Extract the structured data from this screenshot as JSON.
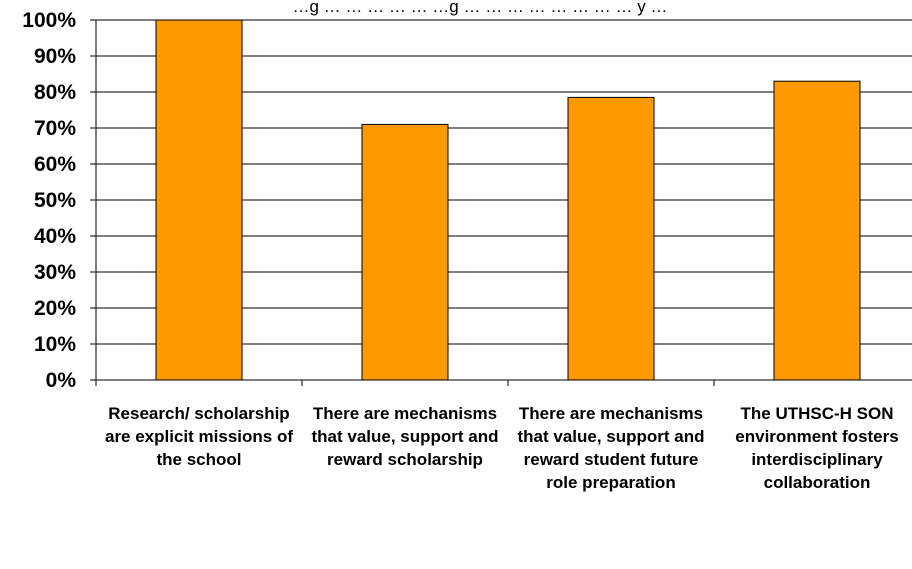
{
  "chart_data": {
    "type": "bar",
    "title": "…g … … … … … …g … … … … … … … … y …",
    "categories": [
      "Research/ scholarship are explicit missions of the school",
      "There are mechanisms that value, support and reward scholarship",
      "There are mechanisms that value, support and reward student future role preparation",
      "The UTHSC-H SON environment fosters interdisciplinary collaboration"
    ],
    "values": [
      100,
      71,
      78.5,
      83
    ],
    "ylim": [
      0,
      100
    ],
    "yticks": [
      "0%",
      "10%",
      "20%",
      "30%",
      "40%",
      "50%",
      "60%",
      "70%",
      "80%",
      "90%",
      "100%"
    ],
    "grid": true,
    "bar_color": "#FF9900",
    "bar_edge_color": "#000000"
  }
}
